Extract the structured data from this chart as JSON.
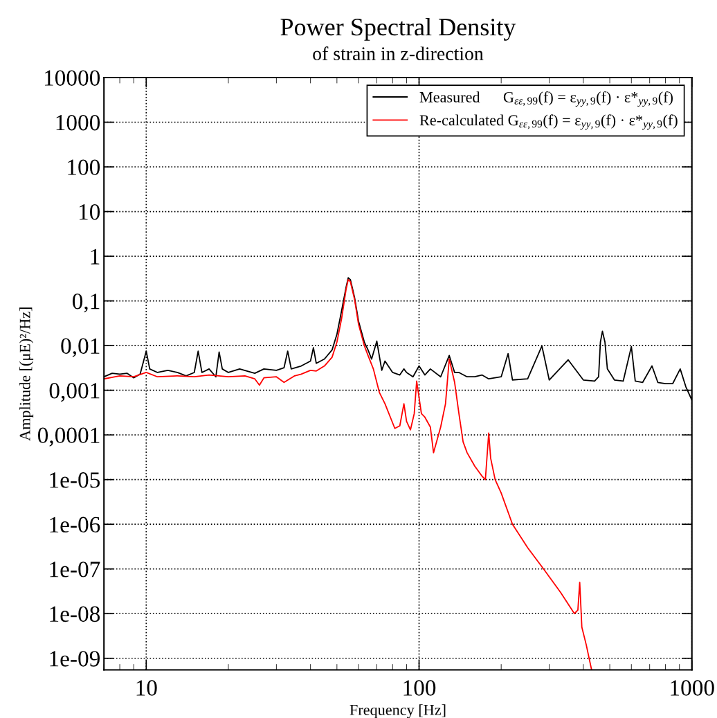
{
  "chart_data": {
    "type": "line",
    "title": "Power Spectral Density",
    "subtitle": "of strain in z-direction",
    "xlabel": "Frequency [Hz]",
    "ylabel": "Amplitude [(μE)²/Hz]",
    "log": "xy",
    "grid": true,
    "legend": "top right",
    "line_style": "solid",
    "marker": "none",
    "xlim": [
      7,
      1000
    ],
    "xticks": [
      10,
      100,
      1000
    ],
    "ylim": [
      5.5e-10,
      10000
    ],
    "yticks": [
      10000,
      1000,
      100,
      10,
      1,
      {
        "value": 0.1,
        "label": "0,1"
      },
      {
        "value": 0.01,
        "label": "0,01"
      },
      {
        "value": 0.001,
        "label": "0,001"
      },
      {
        "value": 0.0001,
        "label": "0,0001"
      },
      {
        "value": 1e-05,
        "label": "1e-05"
      },
      {
        "value": 1e-06,
        "label": "1e-06"
      },
      {
        "value": 1e-07,
        "label": "1e-07"
      },
      {
        "value": 1e-08,
        "label": "1e-08"
      },
      {
        "value": 1e-09,
        "label": "1e-09"
      }
    ],
    "series": [
      {
        "name": "Measured      G$_{εε,99}$(f) = ε$_{yy,9}$(f) · ε*$_{yy,9}$(f)",
        "color": "#000000",
        "x": [
          7,
          7.5,
          8,
          8.5,
          9,
          9.5,
          10,
          10.3,
          11,
          12,
          13,
          14,
          15,
          15.5,
          16,
          17,
          18,
          18.5,
          19,
          20,
          22,
          25,
          27,
          30,
          32,
          33,
          34,
          37,
          40,
          41,
          42,
          45,
          48,
          50,
          52,
          54,
          55,
          56,
          58,
          60,
          63,
          65,
          67,
          70,
          73,
          75,
          80,
          85,
          88,
          90,
          95,
          100,
          105,
          110,
          120,
          129,
          135,
          140,
          150,
          160,
          170,
          180,
          200,
          212,
          220,
          250,
          282,
          300,
          352,
          400,
          440,
          455,
          462,
          470,
          480,
          490,
          520,
          560,
          600,
          620,
          660,
          714,
          750,
          800,
          850,
          906,
          950,
          1000
        ],
        "values": [
          0.002,
          0.0024,
          0.0023,
          0.0024,
          0.0019,
          0.0023,
          0.0075,
          0.003,
          0.0025,
          0.0028,
          0.0025,
          0.0021,
          0.0025,
          0.0075,
          0.0025,
          0.003,
          0.002,
          0.0072,
          0.003,
          0.0025,
          0.003,
          0.0024,
          0.003,
          0.0028,
          0.0032,
          0.0075,
          0.003,
          0.0035,
          0.0045,
          0.009,
          0.004,
          0.005,
          0.008,
          0.018,
          0.06,
          0.2,
          0.33,
          0.3,
          0.12,
          0.035,
          0.012,
          0.008,
          0.005,
          0.0126,
          0.0028,
          0.0045,
          0.0025,
          0.0022,
          0.003,
          0.0025,
          0.002,
          0.0035,
          0.0022,
          0.003,
          0.002,
          0.006,
          0.0025,
          0.0025,
          0.002,
          0.002,
          0.0022,
          0.0018,
          0.002,
          0.0066,
          0.0017,
          0.0018,
          0.0098,
          0.0017,
          0.0048,
          0.0017,
          0.0016,
          0.002,
          0.012,
          0.021,
          0.012,
          0.003,
          0.0017,
          0.0016,
          0.0095,
          0.0016,
          0.0015,
          0.0035,
          0.0015,
          0.0014,
          0.0014,
          0.003,
          0.0012,
          0.0006
        ]
      },
      {
        "name": "Re-calculated G$_{εε,99}$(f) = ε$_{yy,9}$(f) · ε*$_{yy,9}$(f)",
        "color": "#ff0000",
        "x": [
          7,
          8,
          9,
          10,
          11,
          13,
          15,
          17,
          20,
          23,
          25,
          26,
          27,
          30,
          32,
          35,
          37,
          40,
          42,
          45,
          48,
          50,
          52,
          54,
          55,
          56,
          58,
          60,
          63,
          65,
          68,
          71.5,
          75,
          81.5,
          85,
          88,
          90,
          93,
          96,
          98,
          102,
          105,
          110,
          113,
          120,
          125,
          129,
          135,
          140,
          145,
          150,
          160,
          170,
          175,
          180,
          183,
          190,
          200,
          220,
          250,
          286,
          330,
          371,
          382,
          388,
          395,
          410,
          420,
          429
        ],
        "values": [
          0.0018,
          0.0021,
          0.002,
          0.0025,
          0.002,
          0.0021,
          0.002,
          0.0022,
          0.002,
          0.0021,
          0.0018,
          0.0013,
          0.0019,
          0.002,
          0.0015,
          0.0021,
          0.0023,
          0.0028,
          0.0027,
          0.0035,
          0.0055,
          0.012,
          0.04,
          0.18,
          0.3,
          0.27,
          0.11,
          0.03,
          0.01,
          0.006,
          0.003,
          0.0009,
          0.0005,
          0.00014,
          0.00016,
          0.0005,
          0.0002,
          0.00013,
          0.0003,
          0.0016,
          0.0003,
          0.00025,
          0.00015,
          4e-05,
          0.00015,
          0.0005,
          0.005,
          0.0015,
          0.0003,
          7e-05,
          4e-05,
          2e-05,
          1.2e-05,
          1e-05,
          0.00011,
          3e-05,
          1e-05,
          5e-06,
          1e-06,
          3e-07,
          1e-07,
          3e-08,
          1e-08,
          1.2e-08,
          5e-08,
          5e-09,
          2e-09,
          1e-09,
          5.5e-10
        ]
      }
    ]
  }
}
